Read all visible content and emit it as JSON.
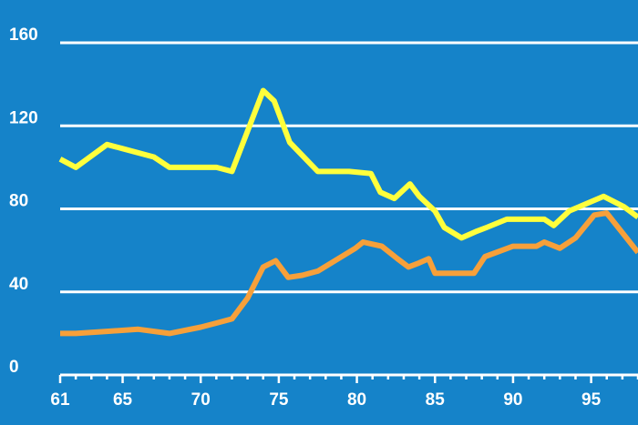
{
  "chart_data": {
    "type": "line",
    "title": "",
    "xlabel": "",
    "ylabel": "",
    "xlim": [
      61,
      98
    ],
    "ylim": [
      0,
      160
    ],
    "y_ticks": [
      0,
      40,
      80,
      120,
      160
    ],
    "x_ticks": [
      61,
      65,
      70,
      75,
      80,
      85,
      90,
      95
    ],
    "x_tick_labels": [
      "61",
      "65",
      "70",
      "75",
      "80",
      "85",
      "90",
      "95"
    ],
    "y_tick_labels": [
      "0",
      "40",
      "80",
      "120",
      "160"
    ],
    "grid": true,
    "legend": "none",
    "background_color": "#1583c9",
    "series": [
      {
        "color": "#ffff3c",
        "x": [
          61,
          62,
          64,
          65,
          67,
          68,
          70,
          71,
          72,
          74,
          74.7,
          75.7,
          77.5,
          79.5,
          80.9,
          81.5,
          82.4,
          83.4,
          84,
          85,
          85.6,
          86.7,
          87.6,
          88.3,
          89.6,
          90.5,
          92,
          92.6,
          93.6,
          95.8,
          97.1,
          98
        ],
        "values": [
          104,
          100,
          111,
          109,
          105,
          100,
          100,
          100,
          98,
          137,
          132,
          112,
          98,
          98,
          97,
          88,
          85,
          92,
          86,
          79,
          71,
          66,
          69,
          71,
          75,
          75,
          75,
          72,
          79,
          86,
          81,
          76
        ]
      },
      {
        "color": "#f7a03a",
        "x": [
          61,
          62,
          64,
          66,
          68,
          70,
          71,
          72,
          73,
          74,
          74.8,
          75.6,
          76.5,
          77.5,
          79.9,
          80.4,
          81,
          81.6,
          82.6,
          83.3,
          84,
          84.6,
          85,
          87.5,
          88.2,
          90,
          91.5,
          92,
          93,
          94,
          95.2,
          96,
          98
        ],
        "values": [
          20,
          20,
          21,
          22,
          20,
          23,
          25,
          27,
          37,
          52,
          55,
          47,
          48,
          50,
          61,
          64,
          63,
          62,
          56,
          52,
          54,
          56,
          49,
          49,
          57,
          62,
          62,
          64,
          61,
          66,
          77,
          78,
          59
        ]
      }
    ]
  }
}
